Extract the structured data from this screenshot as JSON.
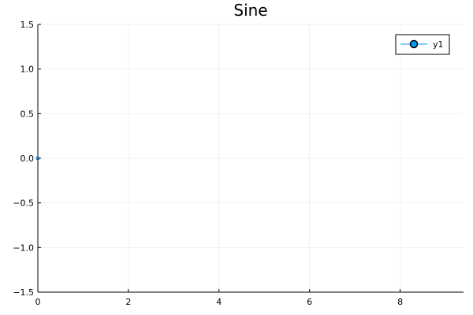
{
  "chart_data": {
    "type": "line",
    "title": "Sine",
    "xlabel": "",
    "ylabel": "",
    "xlim": [
      0,
      9.4
    ],
    "ylim": [
      -1.5,
      1.5
    ],
    "xticks": [
      0,
      2,
      4,
      6,
      8
    ],
    "xtick_labels": [
      "0",
      "2",
      "4",
      "6",
      "8"
    ],
    "yticks": [
      -1.5,
      -1.0,
      -0.5,
      0.0,
      0.5,
      1.0,
      1.5
    ],
    "ytick_labels": [
      "−1.5",
      "−1.0",
      "−0.5",
      "0.0",
      "0.5",
      "1.0",
      "1.5"
    ],
    "grid": true,
    "legend_position": "top-right",
    "series": [
      {
        "name": "y1",
        "color": "#009AFA",
        "marker": "circle",
        "x": [
          0
        ],
        "y": [
          0
        ]
      }
    ]
  }
}
